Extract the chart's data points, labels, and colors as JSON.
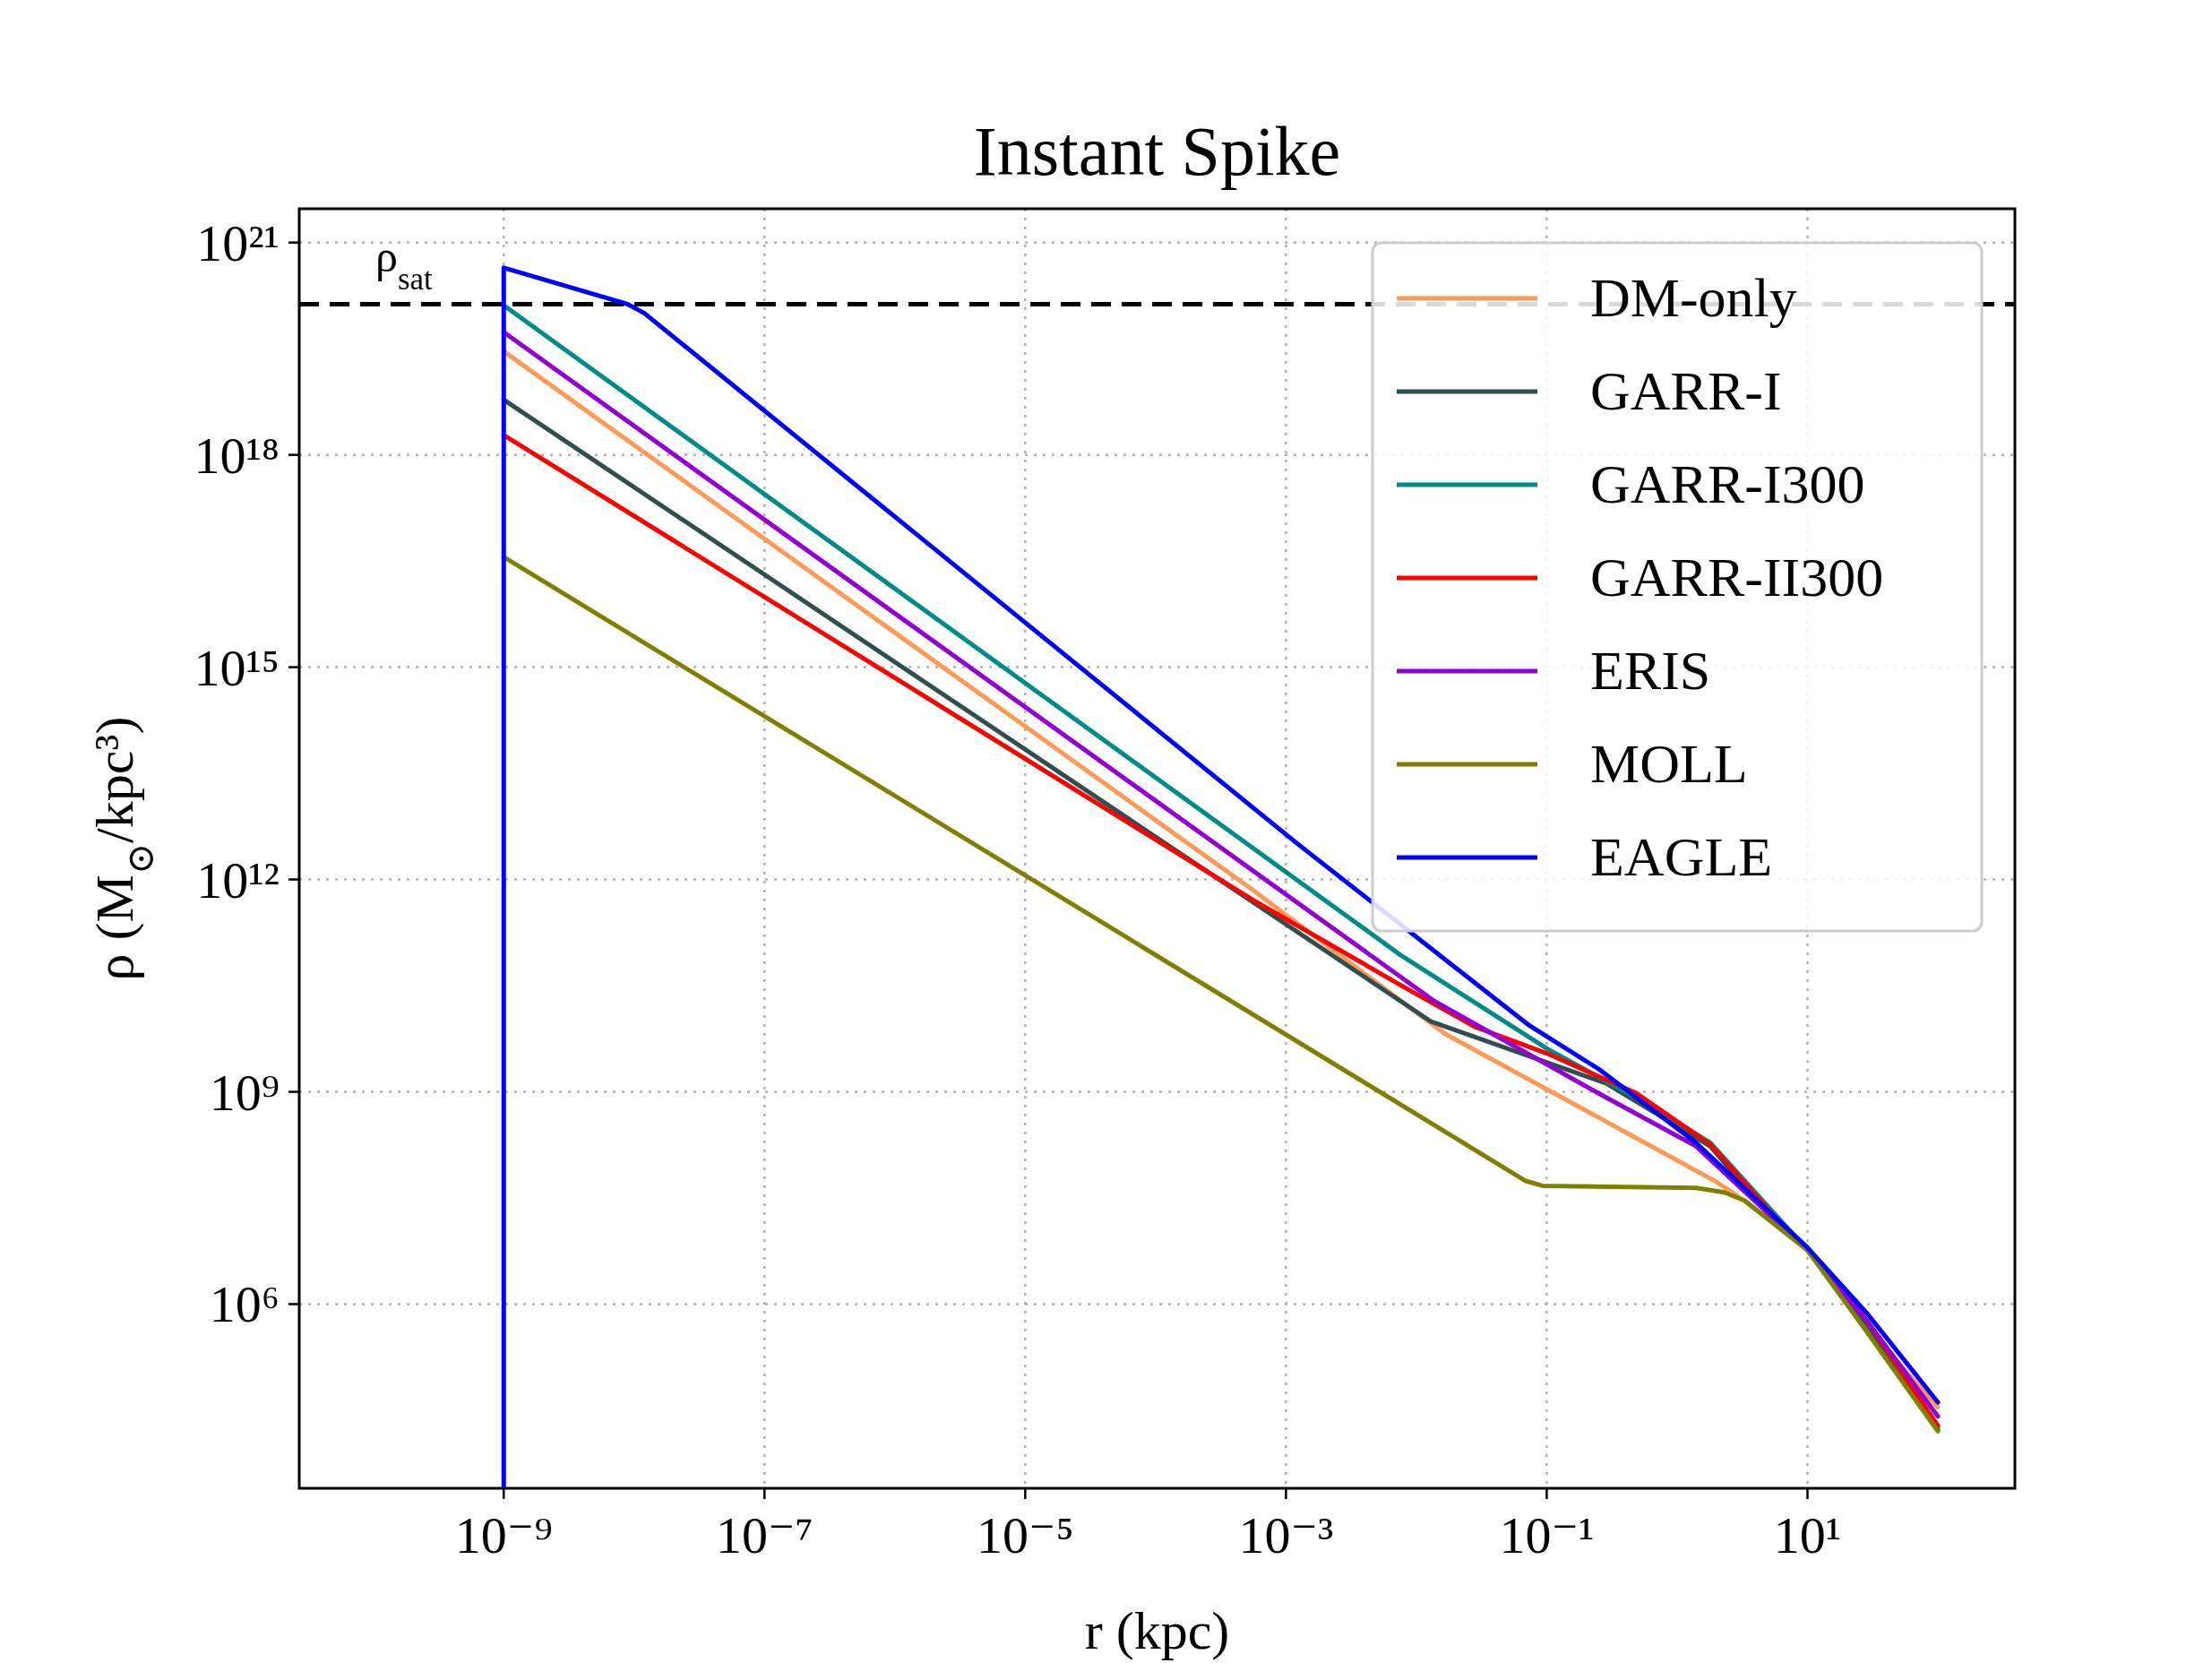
{
  "chart_data": {
    "type": "line",
    "title": "Instant Spike",
    "xlabel": "r (kpc)",
    "ylabel": "ρ (M$_{⊙}$/kpc³)",
    "log": "xy",
    "grid": true,
    "legend": "top right",
    "xlim": [
      2.7e-11,
      390
    ],
    "ylim": [
      2500,
      3e+21
    ],
    "xticks": [
      {
        "value": 1e-09,
        "label": "10⁻⁹"
      },
      {
        "value": 1e-07,
        "label": "10⁻⁷"
      },
      {
        "value": 1e-05,
        "label": "10⁻⁵"
      },
      {
        "value": 0.001,
        "label": "10⁻³"
      },
      {
        "value": 0.1,
        "label": "10⁻¹"
      },
      {
        "value": 10,
        "label": "10¹"
      }
    ],
    "yticks": [
      {
        "value": 1000000.0,
        "label": "10⁶"
      },
      {
        "value": 1000000000.0,
        "label": "10⁹"
      },
      {
        "value": 1000000000000.0,
        "label": "10¹²"
      },
      {
        "value": 1000000000000000.0,
        "label": "10¹⁵"
      },
      {
        "value": 1e+18,
        "label": "10¹⁸"
      },
      {
        "value": 1e+21,
        "label": "10²¹"
      }
    ],
    "ref_lines": [
      {
        "axis": "y",
        "value": 1.35e+20,
        "label": "ρ$_{sat}$",
        "color": "#000000",
        "line_style": "dashed"
      }
    ],
    "series": [
      {
        "name": "DM-only",
        "color": "#ff9955",
        "x": [
          1e-09,
          0.00055,
          0.0166,
          1.95,
          3.3,
          10,
          29,
          100
        ],
        "values": [
          2.9e+19,
          720000000000.0,
          6600000000.0,
          55000000.0,
          29000000.0,
          5800000.0,
          450000.0,
          35000.0
        ]
      },
      {
        "name": "GARR-I",
        "color": "#2f4f4f",
        "x": [
          1e-09,
          0.013,
          0.29,
          1.8,
          5.1,
          10,
          29,
          100
        ],
        "values": [
          6e+18,
          9800000000.0,
          1300000000.0,
          170000000.0,
          18000000.0,
          5800000.0,
          500000.0,
          17000.0
        ]
      },
      {
        "name": "GARR-I300",
        "color": "#008b8b",
        "x": [
          1e-09,
          0.0076,
          0.1,
          0.58,
          1.8,
          10,
          29,
          100
        ],
        "values": [
          1.3e+20,
          85000000000.0,
          4100000000.0,
          690000000.0,
          190000000.0,
          5800000.0,
          560000.0,
          19000.0
        ]
      },
      {
        "name": "GARR-II300",
        "color": "#ff0000",
        "x": [
          1e-09,
          0.00055,
          0.0076,
          0.028,
          0.1,
          0.49,
          1.8,
          5.1,
          10,
          29,
          100
        ],
        "values": [
          1.9e+18,
          520000000000.0,
          32000000000.0,
          8300000000.0,
          3500000000.0,
          950000000.0,
          180000000.0,
          21000000.0,
          5800000.0,
          560000.0,
          19000.0
        ]
      },
      {
        "name": "ERIS",
        "color": "#9400d3",
        "x": [
          1e-09,
          0.0138,
          0.25,
          1.4,
          10,
          29,
          100
        ],
        "values": [
          5.4e+19,
          19000000000.0,
          950000000.0,
          170000000.0,
          5800000.0,
          560000.0,
          26000.0
        ]
      },
      {
        "name": "MOLL",
        "color": "#808000",
        "x": [
          1e-09,
          0.069,
          0.093,
          1.4,
          2.3,
          3.3,
          10,
          29,
          100
        ],
        "values": [
          3.6e+16,
          55000000.0,
          47000000.0,
          44000000.0,
          38000000.0,
          29000000.0,
          5800000.0,
          390000.0,
          16000.0
        ]
      },
      {
        "name": "EAGLE",
        "color": "#0000ff",
        "x": [
          1e-09,
          1e-09,
          8.9e-09,
          1.2e-08,
          0.0012,
          0.072,
          0.25,
          1.4,
          10,
          29,
          100
        ],
        "values": [
          2600,
          4.4e+20,
          1.35e+20,
          1e+20,
          3300000000000.0,
          8900000000.0,
          2100000000.0,
          190000000.0,
          6300000.0,
          720000.0,
          41000.0
        ]
      }
    ]
  }
}
